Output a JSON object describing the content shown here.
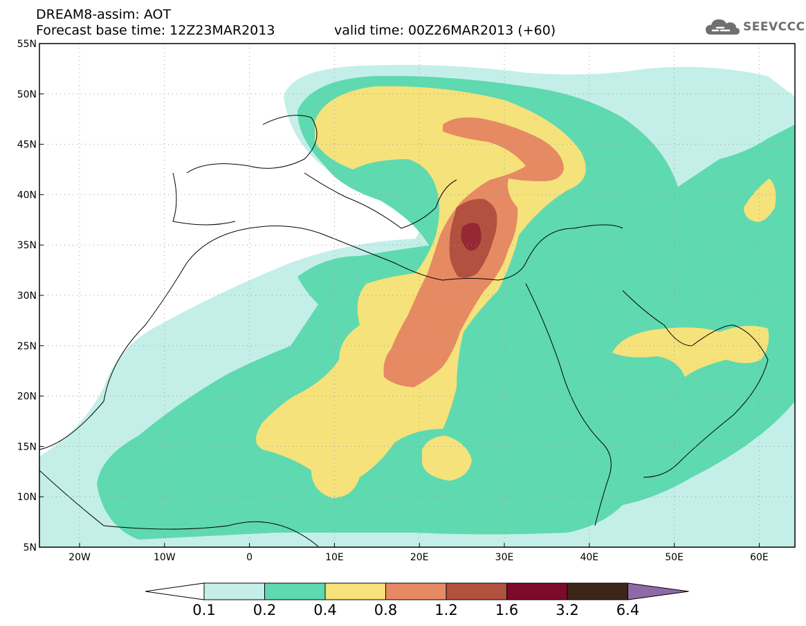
{
  "header": {
    "title": "DREAM8-assim: AOT",
    "base_time": "Forecast base time: 12Z23MAR2013",
    "valid_time": "valid time: 00Z26MAR2013 (+60)"
  },
  "logo": {
    "text": "SEEVCCC",
    "icon": "cloud-icon"
  },
  "map": {
    "lat_labels": [
      "55N",
      "50N",
      "45N",
      "40N",
      "35N",
      "30N",
      "25N",
      "20N",
      "15N",
      "10N",
      "5N"
    ],
    "lon_labels": [
      "20W",
      "10W",
      "0",
      "10E",
      "20E",
      "30E",
      "40E",
      "50E",
      "60E"
    ]
  },
  "colorbar": {
    "labels": [
      "0.1",
      "0.2",
      "0.4",
      "0.8",
      "1.2",
      "1.6",
      "3.2",
      "6.4"
    ],
    "colors": [
      "#ffffff",
      "#c4efe9",
      "#5fd9b0",
      "#f5e27a",
      "#e68a63",
      "#b2513f",
      "#7d0a2a",
      "#3b2618",
      "#8f6aa6"
    ]
  }
}
